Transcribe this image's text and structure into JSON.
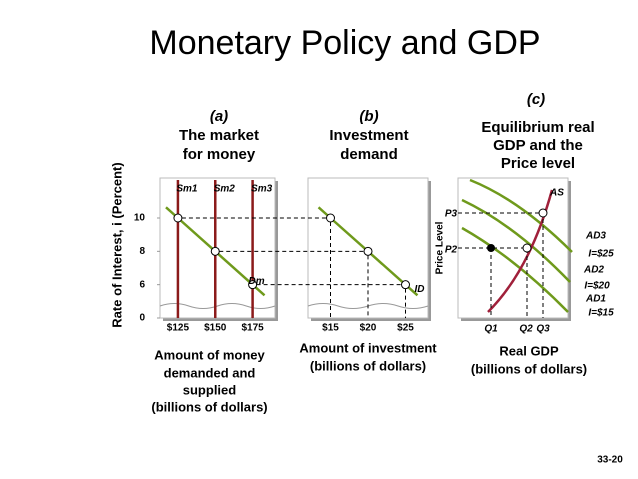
{
  "title": "Monetary Policy and GDP",
  "y_axis_label": "Rate of Interest, i (Percent)",
  "page_number": "33-20",
  "chart_data": [
    {
      "type": "line",
      "label": "(a)",
      "title": [
        "The market",
        "for money"
      ],
      "x_axis_label": [
        "Amount of money",
        "demanded and",
        "supplied",
        "(billions of dollars)"
      ],
      "xlim": [
        113,
        190
      ],
      "ylim": [
        4,
        12.4
      ],
      "xticks": [
        {
          "value": 125,
          "label": "$125"
        },
        {
          "value": 150,
          "label": "$150"
        },
        {
          "value": 175,
          "label": "$175"
        }
      ],
      "yticks": [
        0,
        6,
        8,
        10
      ],
      "axis_break": true,
      "supply": [
        {
          "name": "Sm1",
          "color": "#8b1a1a",
          "value": 125
        },
        {
          "name": "Sm2",
          "color": "#8b1a1a",
          "value": 150
        },
        {
          "name": "Sm3",
          "color": "#8b1a1a",
          "value": 175
        }
      ],
      "series": [
        {
          "name": "Dm",
          "color": "#6f9a1c",
          "x": [
            125,
            150,
            175
          ],
          "values": [
            10,
            8,
            6
          ]
        }
      ]
    },
    {
      "type": "line",
      "label": "(b)",
      "title": [
        "Investment",
        "demand"
      ],
      "x_axis_label": [
        "Amount of investment",
        "(billions of dollars)"
      ],
      "xlim": [
        12,
        28
      ],
      "ylim": [
        4,
        12.4
      ],
      "xticks": [
        {
          "value": 15,
          "label": "$15"
        },
        {
          "value": 20,
          "label": "$20"
        },
        {
          "value": 25,
          "label": "$25"
        }
      ],
      "axis_break": true,
      "series": [
        {
          "name": "ID",
          "color": "#6f9a1c",
          "x": [
            15,
            20,
            25
          ],
          "values": [
            10,
            8,
            6
          ]
        }
      ]
    }
  ],
  "panel_c": {
    "label": "(c)",
    "title": [
      "Equilibrium real",
      "GDP and the",
      "Price level"
    ],
    "x_axis_label": [
      "Real GDP",
      "(billions of dollars)"
    ],
    "y_axis_label": "Price Level",
    "supply_label": "AS",
    "demand": [
      {
        "name": "AD3",
        "note": "I=$25"
      },
      {
        "name": "AD2",
        "note": "I=$20"
      },
      {
        "name": "AD1",
        "note": "I=$15"
      }
    ],
    "x_points": [
      "Q1",
      "Q2",
      "Q3"
    ],
    "y_points": [
      "P2",
      "P3"
    ]
  }
}
